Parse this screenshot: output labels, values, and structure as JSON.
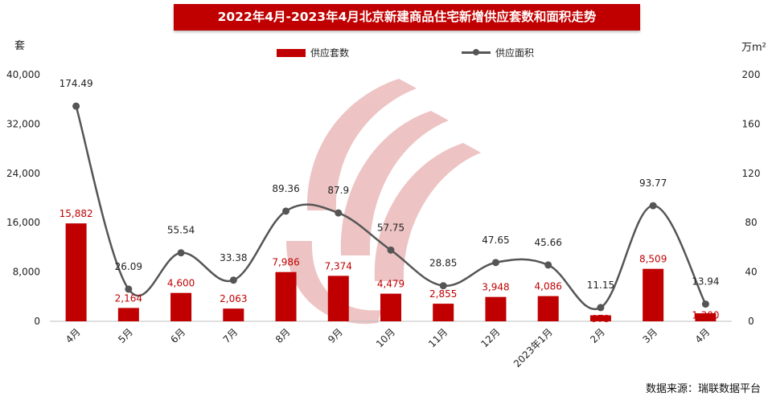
{
  "title": "2022年4月-2023年4月北京新建商品住宅新增供应套数和面积走势",
  "left_unit": "套",
  "right_unit": "万m²",
  "source": "数据来源：瑞联数据平台",
  "colors": {
    "bar": "#c00000",
    "line": "#555555",
    "title_bg": "#c00000",
    "watermark": "#e8b0b0"
  },
  "watermark_icon": "ruilian-logo-icon",
  "chart_data": {
    "type": "bar",
    "title": "2022年4月-2023年4月北京新建商品住宅新增供应套数和面积走势",
    "categories": [
      "4月",
      "5月",
      "6月",
      "7月",
      "8月",
      "9月",
      "10月",
      "11月",
      "12月",
      "2023年1月",
      "2月",
      "3月",
      "4月"
    ],
    "series": [
      {
        "name": "供应套数",
        "type": "bar",
        "axis": "left",
        "values": [
          15882,
          2164,
          4600,
          2063,
          7986,
          7374,
          4479,
          2855,
          3948,
          4086,
          973,
          8509,
          1300
        ],
        "labels": [
          "15,882",
          "2,164",
          "4,600",
          "2,063",
          "7,986",
          "7,374",
          "4,479",
          "2,855",
          "3,948",
          "4,086",
          "973",
          "8,509",
          "1,300"
        ]
      },
      {
        "name": "供应面积",
        "type": "line",
        "axis": "right",
        "values": [
          174.49,
          26.09,
          55.54,
          33.38,
          89.36,
          87.9,
          57.75,
          28.85,
          47.65,
          45.66,
          11.15,
          93.77,
          13.94
        ],
        "labels": [
          "174.49",
          "26.09",
          "55.54",
          "33.38",
          "89.36",
          "87.9",
          "57.75",
          "28.85",
          "47.65",
          "45.66",
          "11.15",
          "93.77",
          "13.94"
        ]
      }
    ],
    "y_left": {
      "label": "套",
      "min": 0,
      "max": 40000,
      "ticks": [
        "0",
        "8,000",
        "16,000",
        "24,000",
        "32,000",
        "40,000"
      ]
    },
    "y_right": {
      "label": "万m²",
      "min": 0,
      "max": 200,
      "ticks": [
        "0",
        "40",
        "80",
        "120",
        "160",
        "200"
      ]
    },
    "legend_position": "top-center",
    "grid": false
  }
}
